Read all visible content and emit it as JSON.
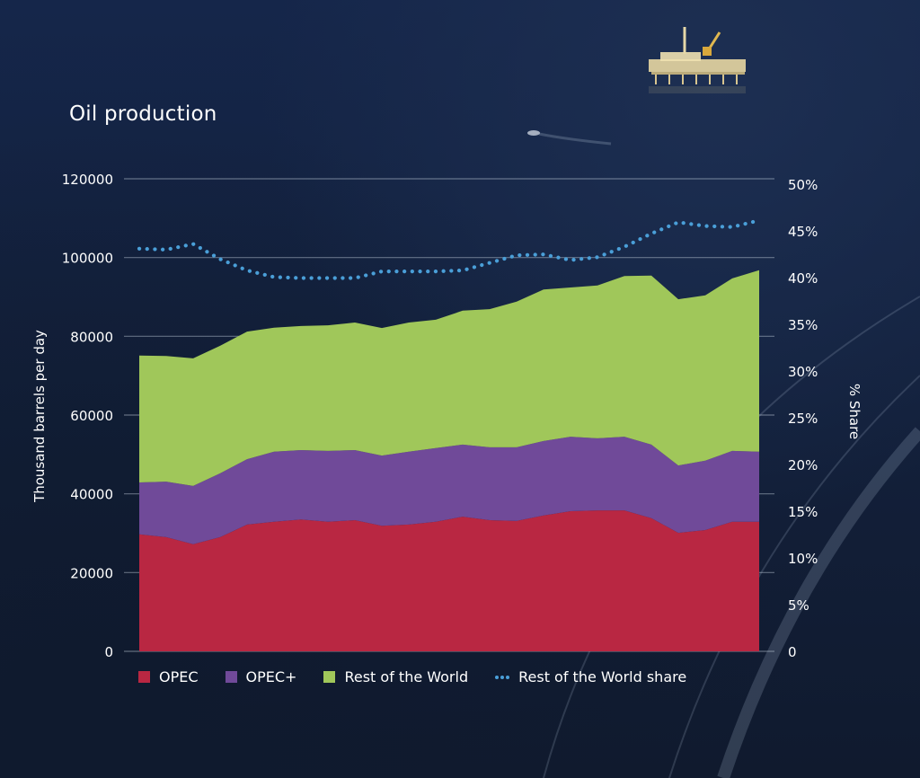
{
  "chart_data": {
    "type": "area",
    "stacked": true,
    "title": "Oil production",
    "xlabel": "",
    "ylabel": "Thousand barrels per day",
    "y2label": "% Share",
    "ylim": [
      0,
      120000
    ],
    "y2lim": [
      0,
      50
    ],
    "yticks": [
      "0",
      "20000",
      "40000",
      "60000",
      "80000",
      "100000",
      "120000"
    ],
    "y2ticks": [
      "0",
      "5%",
      "10%",
      "15%",
      "20%",
      "25%",
      "30%",
      "35%",
      "40%",
      "45%",
      "50%"
    ],
    "grid": true,
    "legend_position": "bottom",
    "x": [
      1,
      2,
      3,
      4,
      5,
      6,
      7,
      8,
      9,
      10,
      11,
      12,
      13,
      14,
      15,
      16,
      17,
      18,
      19,
      20,
      21,
      22,
      23,
      24
    ],
    "series": [
      {
        "name": "OPEC",
        "color": "#b92742",
        "axis": "left",
        "values": [
          29700,
          29000,
          27200,
          29000,
          32200,
          32900,
          33500,
          32900,
          33300,
          31900,
          32200,
          32900,
          34200,
          33300,
          33100,
          34500,
          35600,
          35800,
          35800,
          33800,
          30100,
          30800,
          32900,
          32900
        ]
      },
      {
        "name": "OPEC+",
        "color": "#704a99",
        "axis": "left",
        "values": [
          13200,
          14100,
          14800,
          16200,
          16600,
          17800,
          17600,
          18000,
          17800,
          17800,
          18500,
          18700,
          18300,
          18500,
          18700,
          18900,
          18900,
          18300,
          18700,
          18700,
          17100,
          17600,
          18000,
          17800
        ]
      },
      {
        "name": "Rest of the World",
        "color": "#a0c75a",
        "axis": "left",
        "values": [
          32200,
          31900,
          32400,
          32400,
          32400,
          31500,
          31500,
          31900,
          32400,
          32400,
          32800,
          32600,
          34000,
          35100,
          37000,
          38500,
          37900,
          38800,
          40800,
          42900,
          42200,
          42000,
          43800,
          46100
        ]
      },
      {
        "name": "Rest of the World share",
        "type": "line",
        "style": "dotted",
        "color": "#4a9fd8",
        "axis": "right",
        "unit": "%",
        "values": [
          42.6,
          42.5,
          43.1,
          41.5,
          40.3,
          39.6,
          39.5,
          39.5,
          39.5,
          40.2,
          40.2,
          40.2,
          40.3,
          41.1,
          41.9,
          42.0,
          41.4,
          41.7,
          42.8,
          44.2,
          45.4,
          45.0,
          44.9,
          45.6
        ]
      }
    ]
  },
  "legend": {
    "items": [
      "OPEC",
      "OPEC+",
      "Rest of the World",
      "Rest of the World share"
    ]
  }
}
